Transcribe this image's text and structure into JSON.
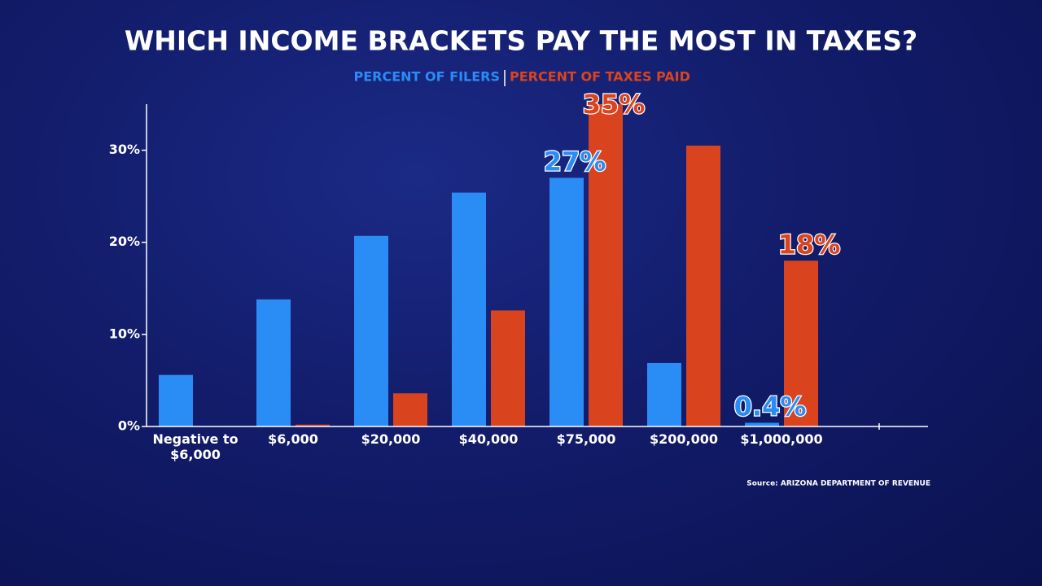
{
  "chart_data": {
    "type": "bar",
    "title": "WHICH INCOME BRACKETS PAY THE MOST IN TAXES?",
    "categories": [
      "Negative to $6,000",
      "$6,000",
      "$20,000",
      "$40,000",
      "$75,000",
      "$200,000",
      "$1,000,000"
    ],
    "series": [
      {
        "name": "PERCENT OF FILERS",
        "color": "#2a8cf5",
        "values": [
          5.6,
          13.8,
          20.7,
          25.4,
          27,
          6.9,
          0.4
        ],
        "value_labels": [
          null,
          null,
          null,
          null,
          "27%",
          null,
          "0.4%"
        ]
      },
      {
        "name": "PERCENT OF TAXES PAID",
        "color": "#d9441f",
        "values": [
          0,
          0.2,
          3.6,
          12.6,
          35,
          30.5,
          18
        ],
        "value_labels": [
          null,
          null,
          null,
          null,
          "35%",
          null,
          "18%"
        ]
      }
    ],
    "ylim": [
      0,
      35
    ],
    "yticks": [
      {
        "value": 0,
        "label": "0%"
      },
      {
        "value": 10,
        "label": "10%"
      },
      {
        "value": 20,
        "label": "20%"
      },
      {
        "value": 30,
        "label": "30%"
      }
    ],
    "source": "Source: ARIZONA DEPARTMENT OF REVENUE"
  }
}
